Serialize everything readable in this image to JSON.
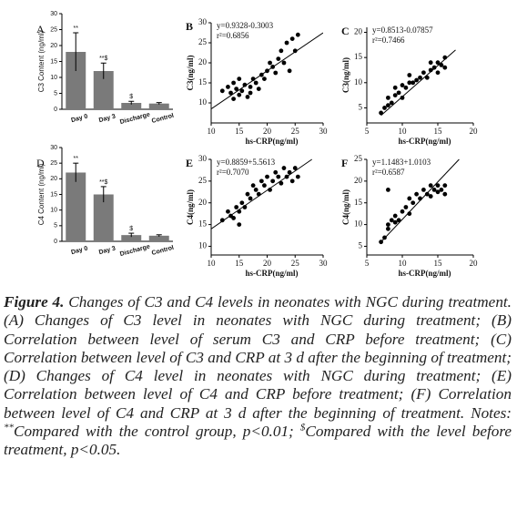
{
  "chart_data": [
    {
      "type": "bar",
      "label": "A",
      "ylabel": "C3 Content (ng/ml)",
      "categories": [
        "Day 0",
        "Day 3",
        "Discharge",
        "Control"
      ],
      "values": [
        18,
        12,
        2,
        1.8
      ],
      "errors": [
        6,
        2.5,
        0.5,
        0.3
      ],
      "annotations": [
        "**",
        "**$",
        "$",
        null
      ],
      "color": "#7a7a7a",
      "ylim": [
        0,
        30
      ],
      "yticks": [
        0,
        5,
        10,
        15,
        20,
        25,
        30
      ]
    },
    {
      "type": "scatter",
      "label": "B",
      "xlabel": "hs-CRP(ng/ml)",
      "ylabel": "C3(ng/ml)",
      "annotations": [
        "y=0.9328-0.3003",
        "r²=0.6856"
      ],
      "x": [
        12,
        13,
        13.5,
        14,
        14.5,
        15,
        15.5,
        16,
        16.5,
        17,
        17.5,
        18,
        18.5,
        19,
        19.5,
        20,
        20.5,
        21,
        21.5,
        22,
        22.5,
        23,
        23.5,
        24,
        24.5,
        25,
        25.5,
        15,
        17,
        14
      ],
      "y": [
        13,
        14,
        12.5,
        15,
        13.5,
        12,
        13,
        14.5,
        11.5,
        14,
        16,
        15,
        13.5,
        17,
        16,
        18,
        20,
        19,
        17.5,
        21,
        23,
        20,
        25,
        18,
        26,
        23,
        27,
        16,
        12.5,
        11
      ],
      "trend": {
        "x": [
          10,
          30
        ],
        "y": [
          8.5,
          27.5
        ]
      },
      "xlim": [
        10,
        30
      ],
      "xticks": [
        10,
        15,
        20,
        25,
        30
      ],
      "ylim": [
        5,
        30
      ],
      "yticks": [
        10,
        15,
        20,
        25,
        30
      ]
    },
    {
      "type": "scatter",
      "label": "C",
      "xlabel": "hs-CRP(ng/ml)",
      "ylabel": "C3(ng/ml)",
      "annotations": [
        "y=0.8513-0.07857",
        "r²=0.7466"
      ],
      "x": [
        7,
        7.5,
        8,
        8,
        8.5,
        9,
        9,
        9.5,
        10,
        10.5,
        11,
        11,
        11.5,
        12,
        12.5,
        13,
        13.5,
        14,
        14,
        14.5,
        15,
        15,
        15.5,
        16,
        16,
        10
      ],
      "y": [
        4,
        5,
        5.5,
        7,
        6,
        7.5,
        9,
        8,
        9.5,
        9,
        10,
        11.5,
        10,
        10.5,
        11,
        12,
        11,
        12.5,
        14,
        13,
        12,
        14,
        13.5,
        15,
        13,
        7
      ],
      "trend": {
        "x": [
          7,
          17.5
        ],
        "y": [
          3.5,
          16.5
        ]
      },
      "xlim": [
        5,
        20
      ],
      "xticks": [
        5,
        10,
        15,
        20
      ],
      "ylim": [
        2,
        21
      ],
      "yticks": [
        5,
        10,
        15,
        20
      ]
    },
    {
      "type": "bar",
      "label": "D",
      "ylabel": "C4 Content (ng/ml)",
      "categories": [
        "Day 0",
        "Day 3",
        "Discharge",
        "Control"
      ],
      "values": [
        22,
        15,
        2,
        1.8
      ],
      "errors": [
        3,
        2.5,
        0.6,
        0.3
      ],
      "annotations": [
        "**",
        "**$",
        "$",
        null
      ],
      "color": "#7a7a7a",
      "ylim": [
        0,
        30
      ],
      "yticks": [
        0,
        5,
        10,
        15,
        20,
        25,
        30
      ]
    },
    {
      "type": "scatter",
      "label": "E",
      "xlabel": "hs-CRP(ng/ml)",
      "ylabel": "C4(ng/ml)",
      "annotations": [
        "y=0.8859+5.5613",
        "r²=0.7070"
      ],
      "x": [
        12,
        13,
        13.5,
        14,
        14.5,
        15,
        15.5,
        16,
        16.5,
        17,
        17.5,
        18,
        18.5,
        19,
        19.5,
        20,
        20.5,
        21,
        21.5,
        22,
        22.5,
        23,
        23.5,
        24,
        24.5,
        25,
        25.5,
        15
      ],
      "y": [
        16,
        18,
        17,
        16.5,
        19,
        18,
        20,
        19,
        22,
        21,
        24,
        23,
        22,
        25,
        24,
        26,
        23,
        25,
        27,
        26,
        24.5,
        28,
        26,
        27,
        25,
        28,
        26,
        15
      ],
      "trend": {
        "x": [
          10,
          28
        ],
        "y": [
          14,
          30
        ]
      },
      "xlim": [
        10,
        30
      ],
      "xticks": [
        10,
        15,
        20,
        25,
        30
      ],
      "ylim": [
        8,
        30
      ],
      "yticks": [
        10,
        15,
        20,
        25,
        30
      ]
    },
    {
      "type": "scatter",
      "label": "F",
      "xlabel": "hs-CRP(ng/ml)",
      "ylabel": "C4(ng/ml)",
      "annotations": [
        "y=1.1483+1.0103",
        "r²=0.6587"
      ],
      "x": [
        7,
        7.5,
        8,
        8,
        8.5,
        9,
        9,
        9.5,
        10,
        10.5,
        11,
        11,
        11.5,
        12,
        12.5,
        13,
        13.5,
        14,
        14,
        14.5,
        15,
        15,
        15.5,
        16,
        16,
        8
      ],
      "y": [
        6,
        7,
        9,
        10,
        11,
        10.5,
        12,
        11,
        13,
        14,
        12.5,
        16,
        15,
        17,
        16,
        18,
        17,
        19,
        16.5,
        18,
        17.5,
        19,
        18,
        19,
        17,
        18
      ],
      "trend": {
        "x": [
          7,
          18
        ],
        "y": [
          6,
          25
        ]
      },
      "xlim": [
        5,
        20
      ],
      "xticks": [
        5,
        10,
        15,
        20
      ],
      "ylim": [
        3,
        25
      ],
      "yticks": [
        5,
        10,
        15,
        20,
        25
      ]
    }
  ],
  "caption": {
    "label": "Figure 4.",
    "text": " Changes of C3 and C4 levels in neonates with NGC during treatment. (A) Changes of C3 level in neonates with NGC during treatment; (B) Correlation between level of serum C3 and CRP before treatment; (C) Correlation between level of C3 and CRP at 3 d after the beginning of treatment; (D) Changes of C4 level in neonates with NGC during treatment; (E) Correlation between level of C4 and CRP before treatment; (F) Correlation between level of C4 and CRP at 3 d after the beginning of treatment. Notes: ",
    "mark1": "**",
    "text2": "Compared with the control group, p<0.01; ",
    "mark2": "$",
    "text3": "Compared with the level before treatment, p<0.05."
  }
}
